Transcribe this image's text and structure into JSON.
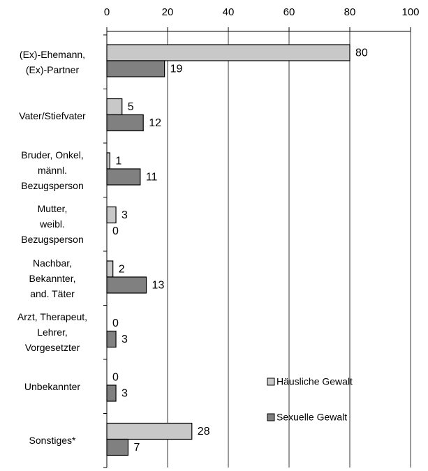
{
  "chart_data": {
    "type": "hbar",
    "categories": [
      "(Ex)-Ehemann,\n(Ex)-Partner",
      "Vater/Stiefvater",
      "Bruder, Onkel,\nmännl.\nBezugsperson",
      "Mutter,\nweibl.\nBezugsperson",
      "Nachbar,\nBekannter,\nand. Täter",
      "Arzt, Therapeut,\nLehrer,\nVorgesetzter",
      "Unbekannter",
      "Sonstiges*"
    ],
    "series": [
      {
        "name": "Häusliche Gewalt",
        "color": "#c8c8c8",
        "values": [
          80,
          5,
          1,
          3,
          2,
          0,
          0,
          28
        ]
      },
      {
        "name": "Sexuelle Gewalt",
        "color": "#808080",
        "values": [
          19,
          12,
          11,
          0,
          13,
          3,
          3,
          7
        ]
      }
    ],
    "xlim": [
      0,
      100
    ],
    "xticks": [
      0,
      20,
      40,
      60,
      80,
      100
    ],
    "grid": true,
    "legend": "lower right"
  }
}
